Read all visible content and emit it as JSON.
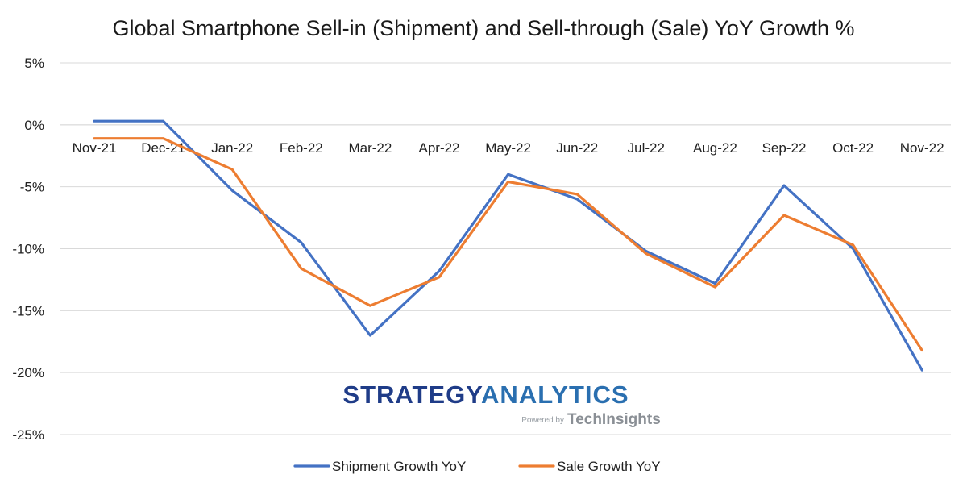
{
  "chart_data": {
    "type": "line",
    "title": "Global Smartphone Sell-in (Shipment) and Sell-through (Sale) YoY Growth %",
    "xlabel": "",
    "ylabel": "",
    "categories": [
      "Nov-21",
      "Dec-21",
      "Jan-22",
      "Feb-22",
      "Mar-22",
      "Apr-22",
      "May-22",
      "Jun-22",
      "Jul-22",
      "Aug-22",
      "Sep-22",
      "Oct-22",
      "Nov-22"
    ],
    "ylim": [
      -25,
      5
    ],
    "yticks": [
      5,
      0,
      -5,
      -10,
      -15,
      -20,
      -25
    ],
    "ytick_labels": [
      "5%",
      "0%",
      "-5%",
      "-10%",
      "-15%",
      "-20%",
      "-25%"
    ],
    "grid": true,
    "legend_position": "bottom",
    "series": [
      {
        "name": "Shipment Growth YoY",
        "color": "#4472c4",
        "values": [
          0.3,
          0.3,
          -5.3,
          -9.5,
          -17.0,
          -11.8,
          -4.0,
          -6.0,
          -10.2,
          -12.8,
          -4.9,
          -10.0,
          -19.8
        ]
      },
      {
        "name": "Sale Growth YoY",
        "color": "#ed7d31",
        "values": [
          -1.1,
          -1.1,
          -3.6,
          -11.6,
          -14.6,
          -12.3,
          -4.6,
          -5.6,
          -10.4,
          -13.1,
          -7.3,
          -9.7,
          -18.2
        ]
      }
    ]
  },
  "logo": {
    "word1": "STRATEGY",
    "word2": "ANALYTICS",
    "color1": "#1f3c88",
    "color2": "#2a6fb0",
    "powered_by": "Powered by",
    "brand": "TechInsights"
  }
}
